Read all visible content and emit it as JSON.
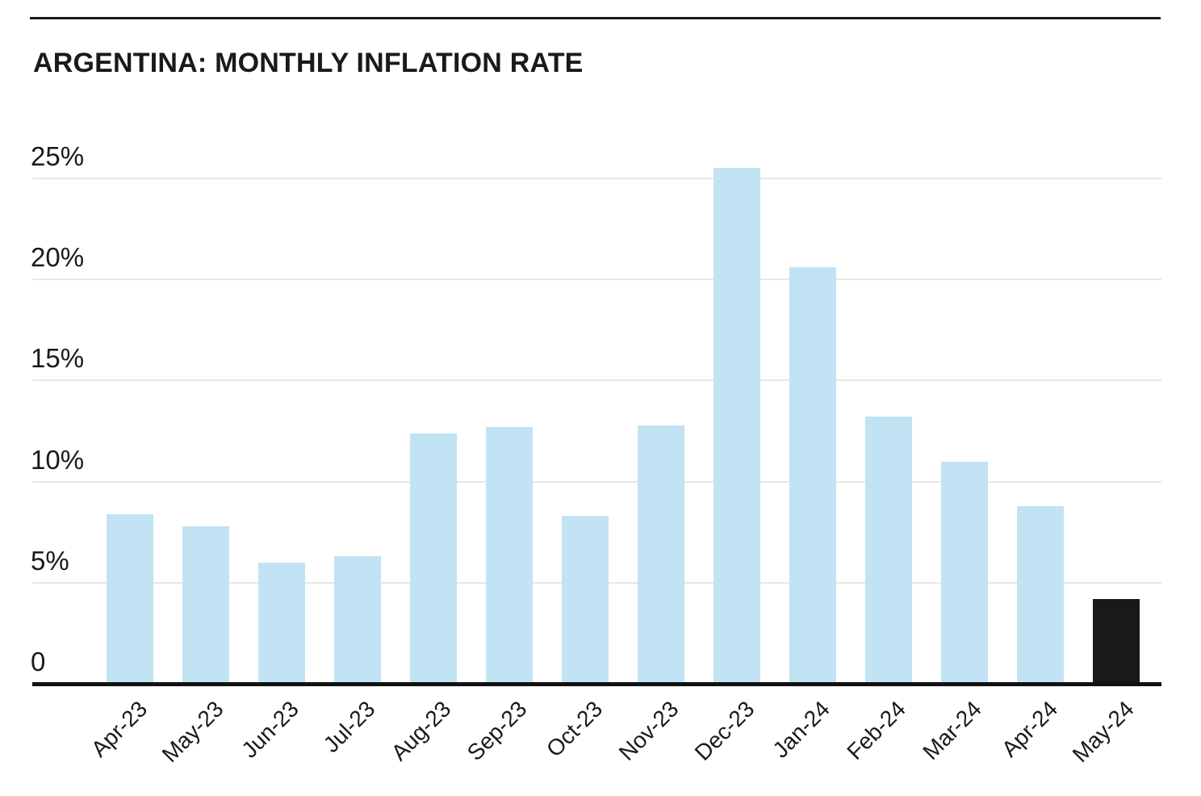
{
  "chart_data": {
    "type": "bar",
    "title": "ARGENTINA: MONTHLY INFLATION RATE",
    "categories": [
      "Apr-23",
      "May-23",
      "Jun-23",
      "Jul-23",
      "Aug-23",
      "Sep-23",
      "Oct-23",
      "Nov-23",
      "Dec-23",
      "Jan-24",
      "Feb-24",
      "Mar-24",
      "Apr-24",
      "May-24"
    ],
    "values": [
      8.4,
      7.8,
      6.0,
      6.3,
      12.4,
      12.7,
      8.3,
      12.8,
      25.5,
      20.6,
      13.2,
      11.0,
      8.8,
      4.2
    ],
    "unit": "%",
    "highlight_index": 13,
    "y_ticks": [
      "0",
      "5%",
      "10%",
      "15%",
      "20%",
      "25%"
    ],
    "y_tick_values": [
      0,
      5,
      10,
      15,
      20,
      25
    ],
    "ylim": [
      0,
      27
    ],
    "xlabel": "",
    "ylabel": "",
    "grid": "horizontal",
    "legend": "none",
    "x_label_rotation_deg": -45,
    "colors": {
      "bar": "#c1e3f4",
      "highlight_bar": "#191919",
      "gridline": "#e7e7e7",
      "axis": "#111111",
      "text": "#1a1a1a",
      "top_rule": "#1a1a1a",
      "background": "#ffffff"
    }
  }
}
